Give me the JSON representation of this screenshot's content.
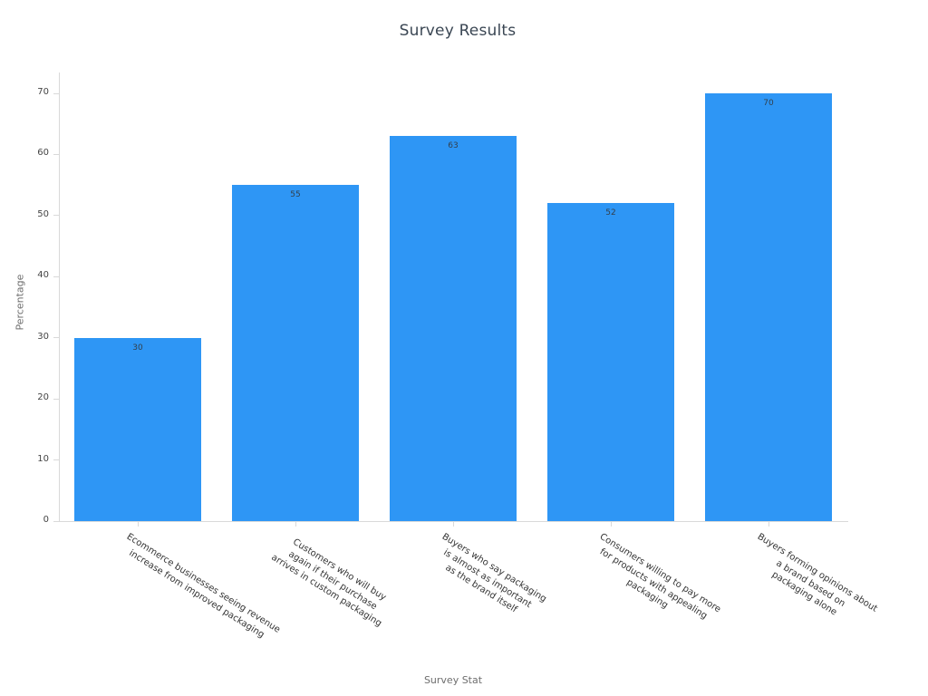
{
  "chart_data": {
    "type": "bar",
    "title": "Survey Results",
    "xlabel": "Survey Stat",
    "ylabel": "Percentage",
    "ylim": [
      0,
      70
    ],
    "ytick_step": 10,
    "ytick_labels": [
      "0",
      "10",
      "20",
      "30",
      "40",
      "50",
      "60",
      "70"
    ],
    "bar_color": "#2E96F5",
    "grid": false,
    "legend": false,
    "categories": [
      [
        "Ecommerce businesses seeing revenue",
        "increase from improved packaging"
      ],
      [
        "Customers who will buy",
        "again if their purchase",
        "arrives in custom packaging"
      ],
      [
        "Buyers who say packaging",
        "is almost as important",
        "as the brand itself"
      ],
      [
        "Consumers willing to pay more",
        "for products with appealing",
        "packaging"
      ],
      [
        "Buyers forming opinions about",
        "a brand based on",
        "packaging alone"
      ]
    ],
    "values": [
      30,
      55,
      63,
      52,
      70
    ]
  }
}
